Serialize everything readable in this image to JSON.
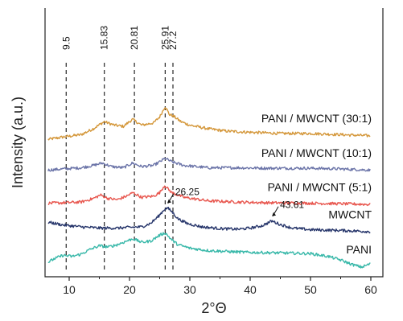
{
  "chart_data": {
    "type": "line",
    "xlabel": "2°Θ",
    "ylabel": "Intensity (a.u.)",
    "xlim": [
      6,
      62
    ],
    "xticks": [
      10,
      20,
      30,
      40,
      50,
      60
    ],
    "y_tick_labels": false,
    "grid": false,
    "reference_peaks": [
      {
        "x": 9.5,
        "label": "9.5"
      },
      {
        "x": 15.83,
        "label": "15.83"
      },
      {
        "x": 20.81,
        "label": "20.81"
      },
      {
        "x": 25.91,
        "label": "25.91"
      },
      {
        "x": 27.2,
        "label": "27.2"
      }
    ],
    "annotations": [
      {
        "series": "MWCNT",
        "x": 26.25,
        "label": "26.25"
      },
      {
        "series": "MWCNT",
        "x": 43.61,
        "label": "43.61"
      }
    ],
    "series": [
      {
        "name": "PANI / MWCNT (30:1)",
        "color": "#d4973a",
        "points": [
          [
            6.5,
            0.54
          ],
          [
            9,
            0.55
          ],
          [
            12,
            0.56
          ],
          [
            14,
            0.585
          ],
          [
            15.8,
            0.615
          ],
          [
            17.5,
            0.6
          ],
          [
            19,
            0.595
          ],
          [
            20.5,
            0.625
          ],
          [
            22,
            0.6
          ],
          [
            24,
            0.61
          ],
          [
            25,
            0.635
          ],
          [
            25.9,
            0.68
          ],
          [
            26.6,
            0.645
          ],
          [
            27.2,
            0.64
          ],
          [
            28.5,
            0.615
          ],
          [
            30,
            0.6
          ],
          [
            33,
            0.585
          ],
          [
            36,
            0.575
          ],
          [
            40,
            0.57
          ],
          [
            45,
            0.565
          ],
          [
            50,
            0.565
          ],
          [
            55,
            0.56
          ],
          [
            60,
            0.555
          ]
        ]
      },
      {
        "name": "PANI / MWCNT (10:1)",
        "color": "#6b74a8",
        "points": [
          [
            6.5,
            0.41
          ],
          [
            9,
            0.415
          ],
          [
            12,
            0.42
          ],
          [
            14,
            0.43
          ],
          [
            15.5,
            0.44
          ],
          [
            17,
            0.425
          ],
          [
            19,
            0.42
          ],
          [
            20.5,
            0.44
          ],
          [
            22,
            0.425
          ],
          [
            24,
            0.43
          ],
          [
            25,
            0.445
          ],
          [
            25.9,
            0.46
          ],
          [
            27,
            0.445
          ],
          [
            29,
            0.43
          ],
          [
            33,
            0.42
          ],
          [
            38,
            0.42
          ],
          [
            43,
            0.418
          ],
          [
            50,
            0.418
          ],
          [
            55,
            0.415
          ],
          [
            60,
            0.41
          ]
        ]
      },
      {
        "name": "PANI / MWCNT (5:1)",
        "color": "#e8574f",
        "points": [
          [
            6.5,
            0.27
          ],
          [
            9,
            0.272
          ],
          [
            12,
            0.275
          ],
          [
            14,
            0.29
          ],
          [
            15.2,
            0.305
          ],
          [
            16.5,
            0.29
          ],
          [
            18,
            0.285
          ],
          [
            19.5,
            0.3
          ],
          [
            20.6,
            0.315
          ],
          [
            22,
            0.295
          ],
          [
            24,
            0.3
          ],
          [
            25,
            0.315
          ],
          [
            25.8,
            0.345
          ],
          [
            27,
            0.315
          ],
          [
            29,
            0.295
          ],
          [
            33,
            0.28
          ],
          [
            38,
            0.275
          ],
          [
            43,
            0.272
          ],
          [
            50,
            0.27
          ],
          [
            55,
            0.268
          ],
          [
            60,
            0.265
          ]
        ]
      },
      {
        "name": "MWCNT",
        "color": "#27366b",
        "points": [
          [
            6.5,
            0.19
          ],
          [
            9,
            0.178
          ],
          [
            12,
            0.17
          ],
          [
            15,
            0.165
          ],
          [
            18,
            0.165
          ],
          [
            20,
            0.168
          ],
          [
            22,
            0.17
          ],
          [
            23.5,
            0.185
          ],
          [
            24.8,
            0.215
          ],
          [
            25.8,
            0.245
          ],
          [
            26.3,
            0.25
          ],
          [
            27,
            0.235
          ],
          [
            28,
            0.205
          ],
          [
            29.5,
            0.185
          ],
          [
            32,
            0.17
          ],
          [
            35,
            0.163
          ],
          [
            38,
            0.16
          ],
          [
            40,
            0.165
          ],
          [
            42,
            0.175
          ],
          [
            43.6,
            0.195
          ],
          [
            45,
            0.18
          ],
          [
            47,
            0.165
          ],
          [
            50,
            0.158
          ],
          [
            55,
            0.155
          ],
          [
            60,
            0.15
          ]
        ]
      },
      {
        "name": "PANI",
        "color": "#38b8a9",
        "points": [
          [
            6.5,
            0.02
          ],
          [
            7.5,
            0.035
          ],
          [
            9,
            0.05
          ],
          [
            10.5,
            0.045
          ],
          [
            12,
            0.055
          ],
          [
            13.5,
            0.075
          ],
          [
            15,
            0.09
          ],
          [
            16.5,
            0.085
          ],
          [
            18,
            0.095
          ],
          [
            19.5,
            0.11
          ],
          [
            20.6,
            0.12
          ],
          [
            22,
            0.105
          ],
          [
            23.5,
            0.11
          ],
          [
            25,
            0.135
          ],
          [
            25.9,
            0.145
          ],
          [
            27,
            0.115
          ],
          [
            28,
            0.095
          ],
          [
            30,
            0.08
          ],
          [
            33,
            0.07
          ],
          [
            37,
            0.065
          ],
          [
            40,
            0.062
          ],
          [
            45,
            0.06
          ],
          [
            50,
            0.057
          ],
          [
            53,
            0.045
          ],
          [
            55,
            0.03
          ],
          [
            57,
            0.01
          ],
          [
            58.5,
            0.0
          ],
          [
            60,
            0.015
          ]
        ]
      }
    ]
  }
}
